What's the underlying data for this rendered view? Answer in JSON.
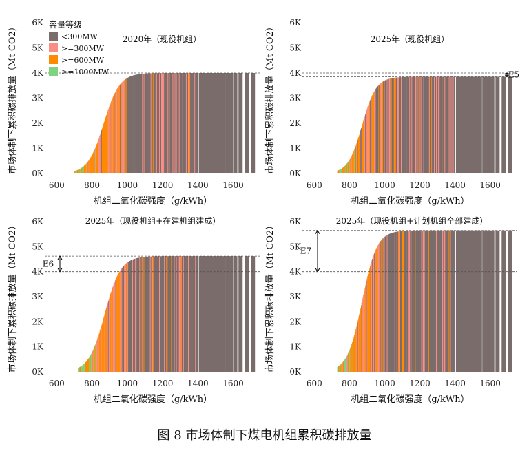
{
  "figure_caption": "图 8 市场体制下煤电机组累积碳排放量",
  "legend": {
    "title": "容量等级",
    "items": [
      {
        "label": "<300MW",
        "color": "#7a6c6a"
      },
      {
        "label": ">=300MW",
        "color": "#fa8e84"
      },
      {
        "label": ">=600MW",
        "color": "#ff8a00"
      },
      {
        "label": ">=1000MW",
        "color": "#7fd37f"
      }
    ]
  },
  "colors": {
    "lt300": "#7a6c6a",
    "ge300": "#fa8e84",
    "ge600": "#ff8a00",
    "ge1000": "#7fd37f",
    "bracket": "#000000"
  },
  "chart_data": [
    {
      "type": "bar",
      "title": "2020年（现役机组）",
      "xlabel": "机组二氧化碳强度（g/kWh）",
      "ylabel": "市场体制下累积碳排放量（Mt CO2）",
      "xticks": [
        "600",
        "800",
        "1000",
        "1200",
        "1400",
        "1600"
      ],
      "yticks": [
        "0K",
        "1K",
        "2K",
        "3K",
        "4K",
        "5K",
        "6K"
      ],
      "xlim": [
        540,
        1750
      ],
      "ylim": [
        0,
        6000
      ],
      "curve": {
        "start": 700,
        "mid": 865,
        "width": 45,
        "plateau": 4000
      },
      "reference_lines": [
        4000
      ],
      "annotation": null,
      "legend_shown": true
    },
    {
      "type": "bar",
      "title": "2025年（现役机组）",
      "xlabel": "机组二氧化碳强度（g/kWh）",
      "ylabel": "市场体制下累积碳排放量（Mt CO2）",
      "xticks": [
        "600",
        "800",
        "1000",
        "1200",
        "1400",
        "1600"
      ],
      "yticks": [
        "0K",
        "1K",
        "2K",
        "3K",
        "4K",
        "5K",
        "6K"
      ],
      "xlim": [
        540,
        1750
      ],
      "ylim": [
        0,
        6000
      ],
      "curve": {
        "start": 730,
        "mid": 870,
        "width": 40,
        "plateau": 3850
      },
      "reference_lines": [
        4000,
        3850
      ],
      "annotation": {
        "label": "E5",
        "from": 4000,
        "to": 3850,
        "side": "right"
      },
      "legend_shown": false
    },
    {
      "type": "bar",
      "title": "2025年（现役机组+在建机组建成）",
      "xlabel": "机组二氧化碳强度（g/kWh）",
      "ylabel": "市场体制下累积碳排放量（Mt CO2）",
      "xticks": [
        "600",
        "800",
        "1000",
        "1200",
        "1400",
        "1600"
      ],
      "yticks": [
        "0K",
        "1K",
        "2K",
        "3K",
        "4K",
        "5K",
        "6K"
      ],
      "xlim": [
        540,
        1750
      ],
      "ylim": [
        0,
        6000
      ],
      "curve": {
        "start": 720,
        "mid": 870,
        "width": 45,
        "plateau": 4620
      },
      "reference_lines": [
        4620,
        4000
      ],
      "annotation": {
        "label": "E6",
        "from": 4620,
        "to": 4000,
        "side": "left"
      },
      "legend_shown": false
    },
    {
      "type": "bar",
      "title": "2025年（现役机组+计划机组全部建成）",
      "xlabel": "机组二氧化碳强度（g/kWh）",
      "ylabel": "市场体制下累积碳排放量（Mt CO2）",
      "xticks": [
        "600",
        "800",
        "1000",
        "1200",
        "1400",
        "1600"
      ],
      "yticks": [
        "0K",
        "1K",
        "2K",
        "3K",
        "4K",
        "5K",
        "6K"
      ],
      "xlim": [
        540,
        1750
      ],
      "ylim": [
        0,
        6000
      ],
      "curve": {
        "start": 730,
        "mid": 870,
        "width": 42,
        "plateau": 5650
      },
      "reference_lines": [
        5650,
        4000
      ],
      "annotation": {
        "label": "E7",
        "from": 5650,
        "to": 4000,
        "side": "left"
      },
      "legend_shown": false
    }
  ]
}
